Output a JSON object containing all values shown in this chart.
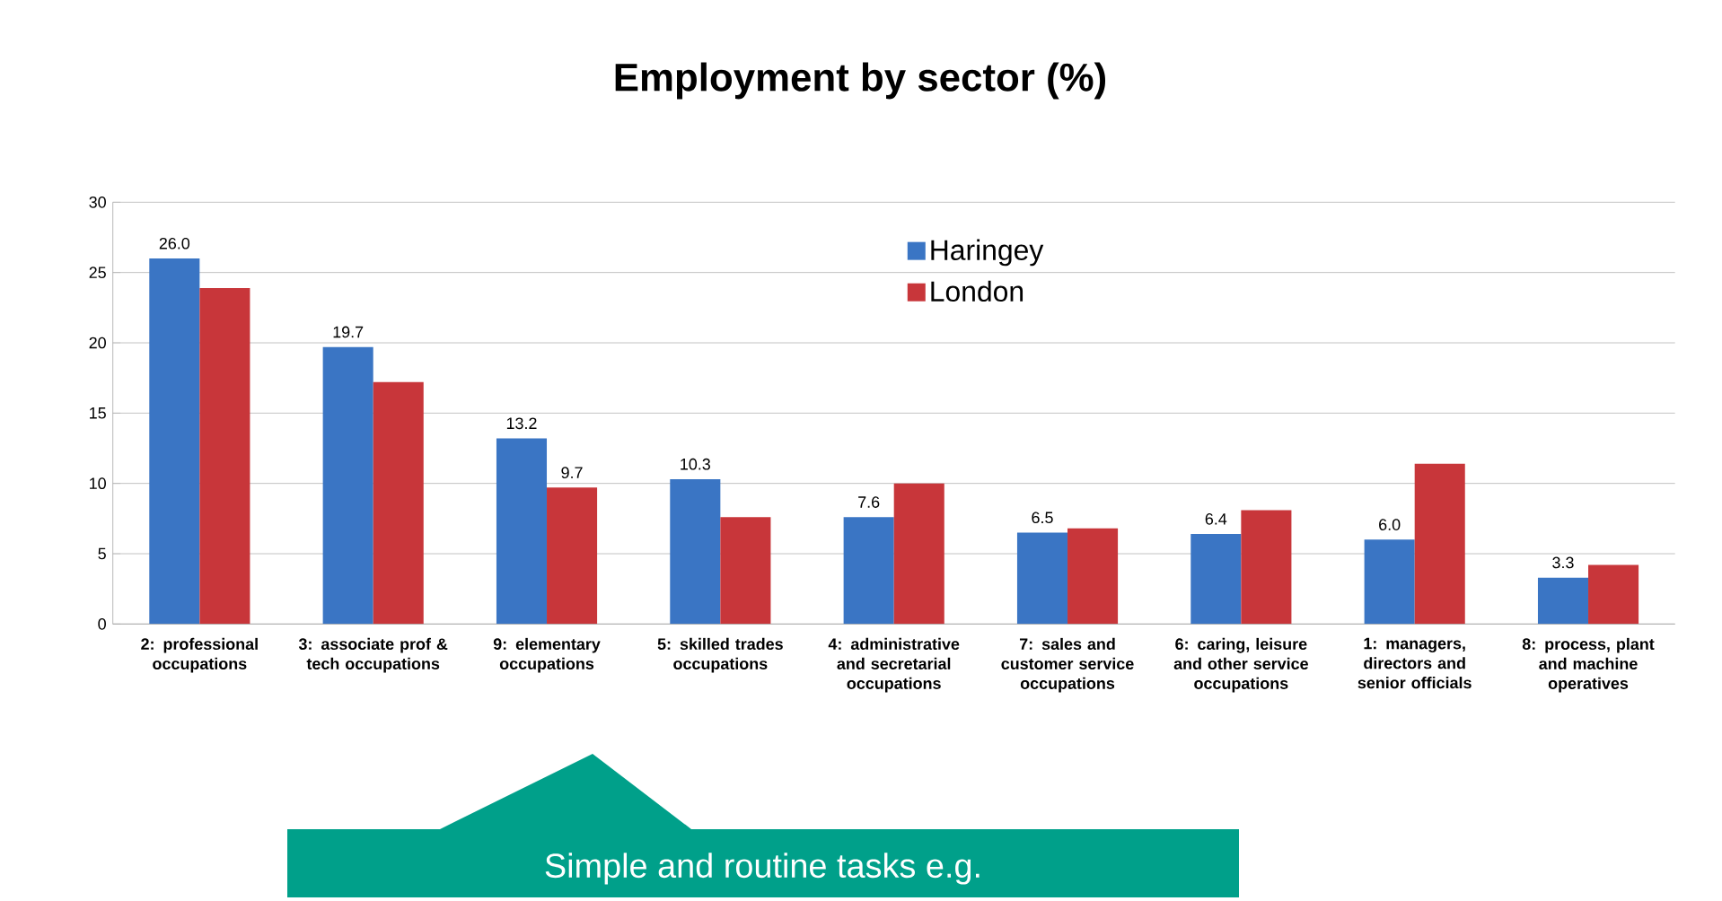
{
  "chart_data": {
    "type": "bar",
    "title": "Employment by sector (%)",
    "categories": [
      "2: professional occupations",
      "3: associate prof & tech occupations",
      "9: elementary occupations",
      "5: skilled trades occupations",
      "4: administrative and secretarial occupations",
      "7: sales and customer service occupations",
      "6: caring, leisure and other service occupations",
      "1: managers, directors and senior officials",
      "8: process, plant and machine operatives"
    ],
    "series": [
      {
        "name": "Haringey",
        "color": "#3a75c4",
        "values": [
          26.0,
          19.7,
          13.2,
          10.3,
          7.6,
          6.5,
          6.4,
          6.0,
          3.3
        ],
        "value_labels": [
          "26.0",
          "19.7",
          "13.2",
          "10.3",
          "7.6",
          "6.5",
          "6.4",
          "6.0",
          "3.3"
        ]
      },
      {
        "name": "London",
        "color": "#c8363a",
        "values": [
          23.9,
          17.2,
          9.7,
          7.6,
          10.0,
          6.8,
          8.1,
          11.4,
          4.2
        ],
        "value_labels": [
          null,
          null,
          "9.7",
          null,
          null,
          null,
          null,
          null,
          null
        ]
      }
    ],
    "ylim": [
      0,
      30
    ],
    "yticks": [
      0,
      5,
      10,
      15,
      20,
      25,
      30
    ],
    "grid": "y",
    "legend": "top",
    "annotations": [
      "Simple and routine tasks e.g."
    ]
  }
}
